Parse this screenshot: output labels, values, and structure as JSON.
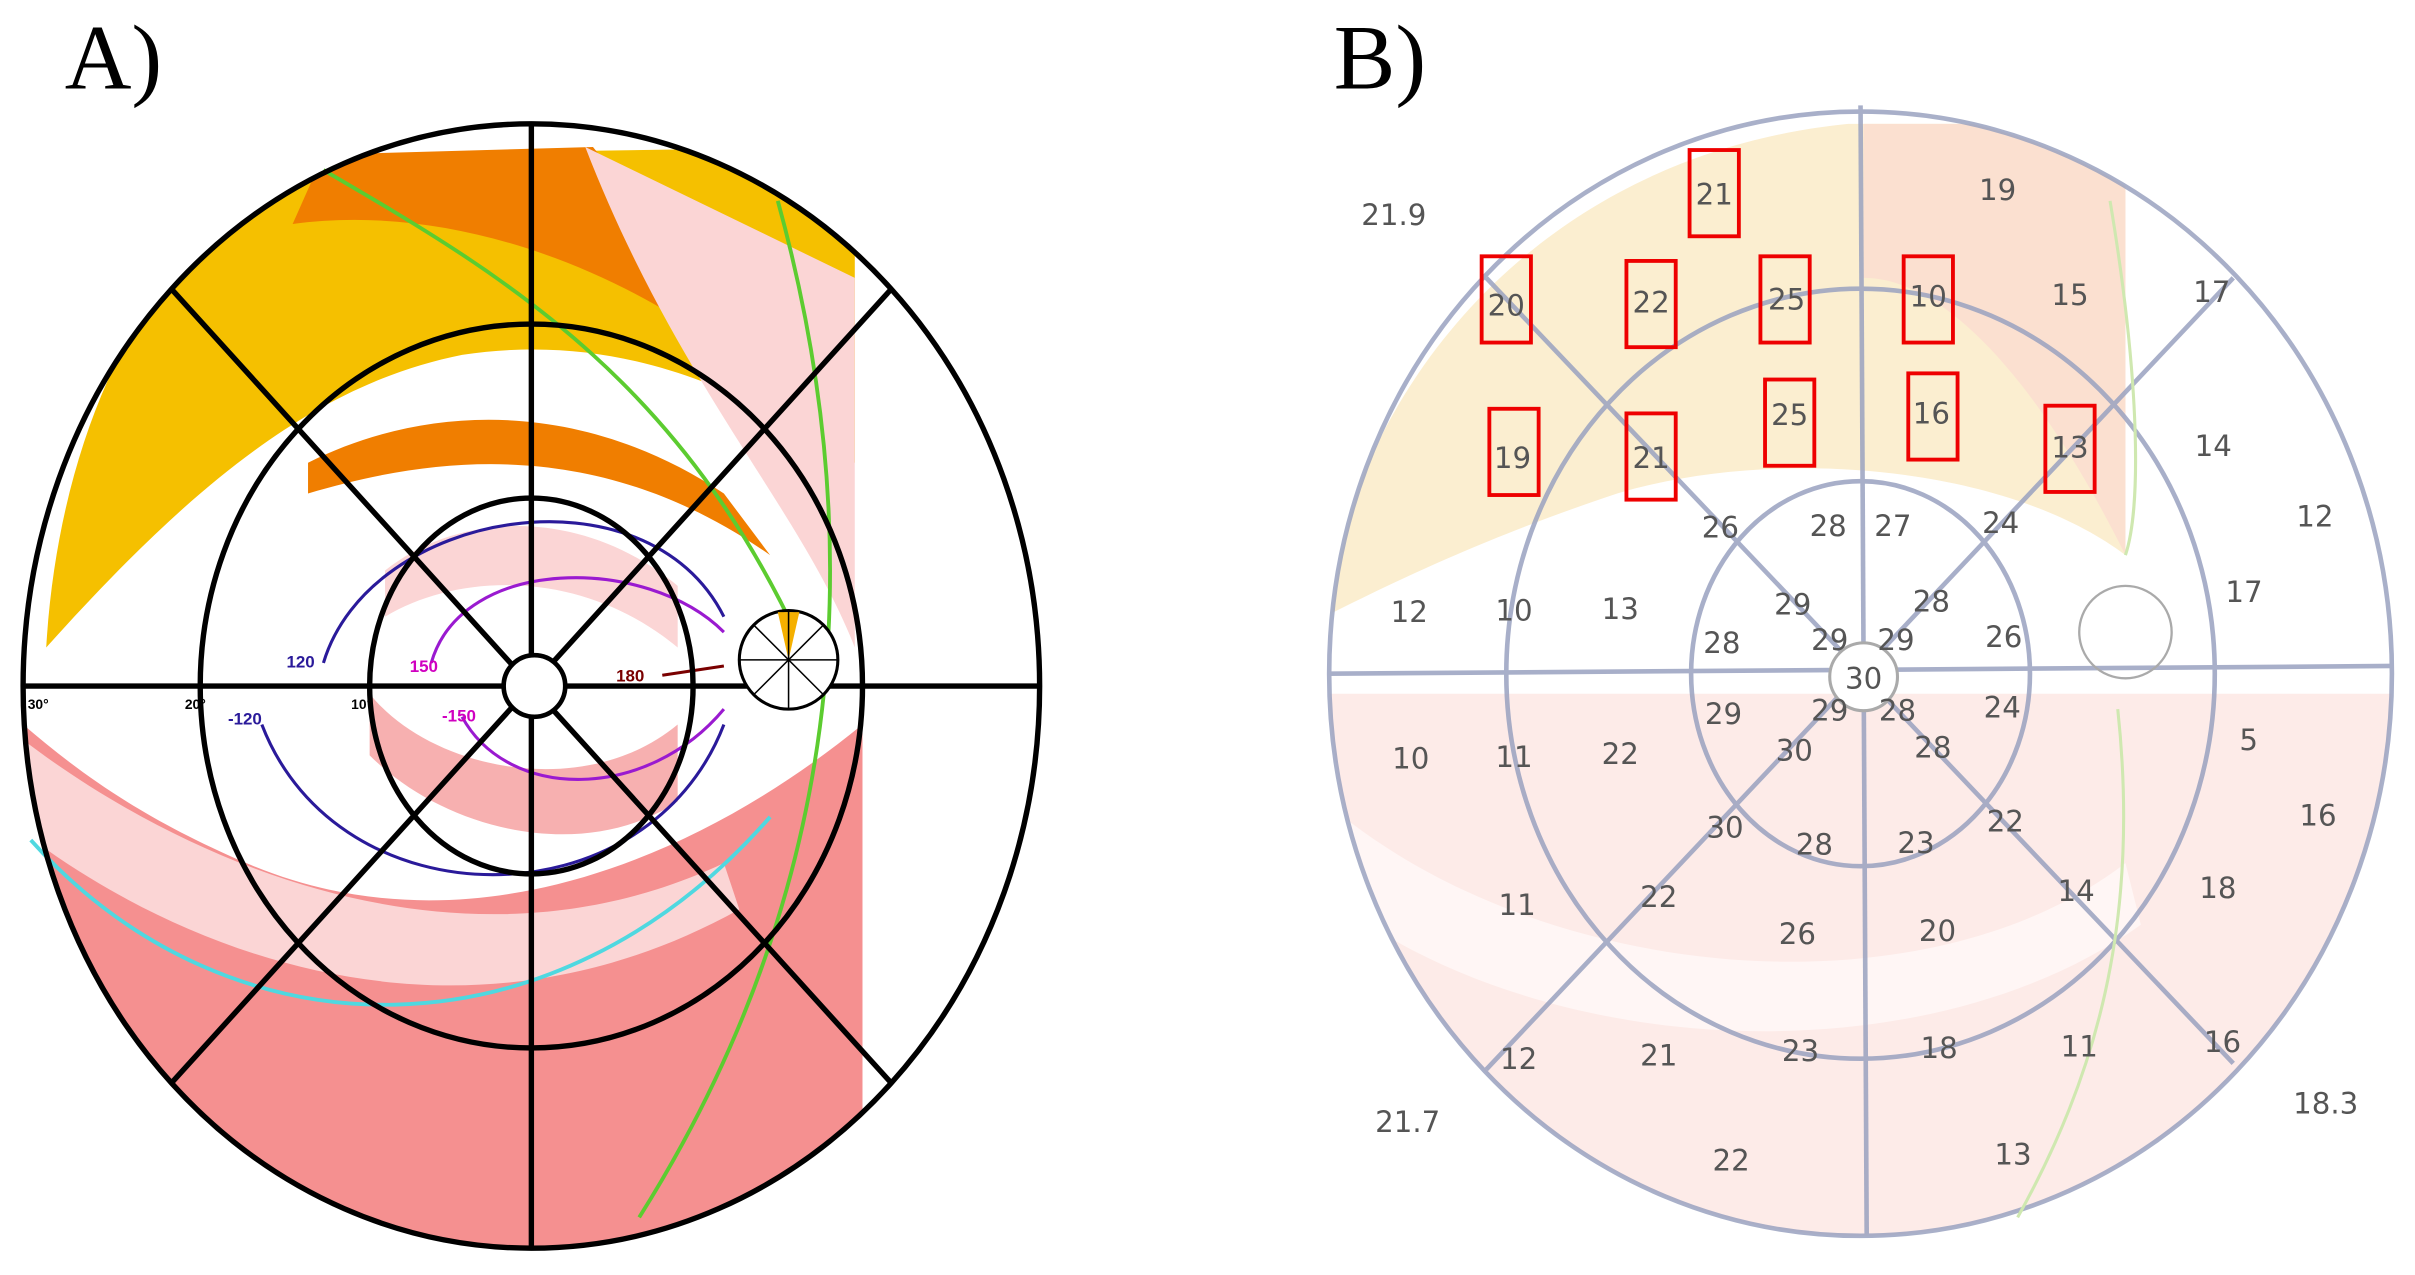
{
  "panels": {
    "a": {
      "label": "A)",
      "contour_labels": [
        120,
        150,
        180,
        -120,
        -150
      ],
      "axis_labels": [
        "30°",
        "20°",
        "10°"
      ]
    },
    "b": {
      "label": "B)",
      "values": [
        21.9,
        21,
        19,
        20,
        22,
        25,
        10,
        15,
        17,
        19,
        21,
        25,
        16,
        13,
        14,
        12,
        26,
        28,
        27,
        24,
        12,
        10,
        13,
        29,
        28,
        17,
        28,
        29,
        29,
        26,
        30,
        10,
        11,
        22,
        29,
        29,
        28,
        24,
        30,
        28,
        5,
        16,
        30,
        28,
        23,
        22,
        11,
        22,
        14,
        18,
        26,
        20,
        12,
        21,
        23,
        18,
        11,
        16,
        18.3,
        21.7,
        22,
        13
      ]
    }
  }
}
